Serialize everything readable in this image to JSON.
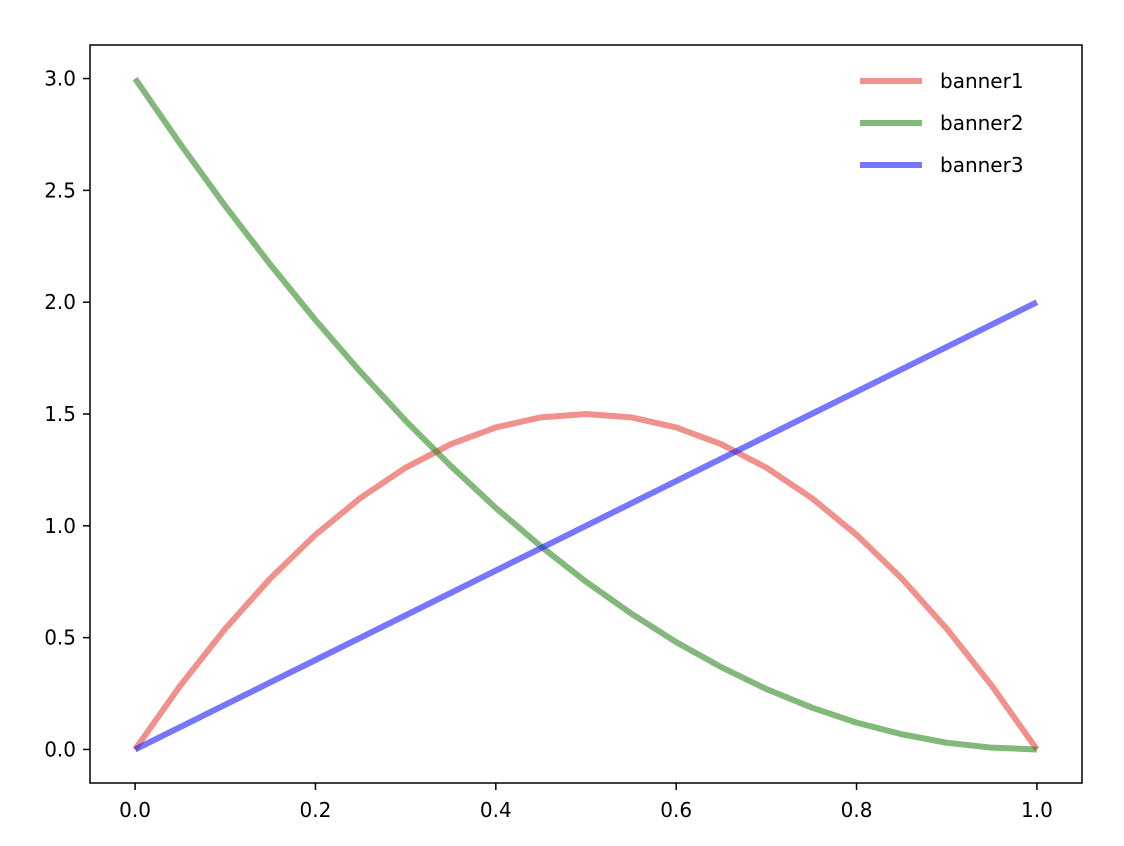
{
  "chart_data": {
    "type": "line",
    "title": "",
    "xlabel": "",
    "ylabel": "",
    "xlim": [
      -0.05,
      1.05
    ],
    "ylim": [
      -0.15,
      3.15
    ],
    "x_ticks": [
      0.0,
      0.2,
      0.4,
      0.6,
      0.8,
      1.0
    ],
    "x_tick_labels": [
      "0.0",
      "0.2",
      "0.4",
      "0.6",
      "0.8",
      "1.0"
    ],
    "y_ticks": [
      0.0,
      0.5,
      1.0,
      1.5,
      2.0,
      2.5,
      3.0
    ],
    "y_tick_labels": [
      "0.0",
      "0.5",
      "1.0",
      "1.5",
      "2.0",
      "2.5",
      "3.0"
    ],
    "grid": false,
    "legend_position": "top-right",
    "legend_frame": false,
    "x": [
      0.0,
      0.05,
      0.1,
      0.15,
      0.2,
      0.25,
      0.3,
      0.35,
      0.4,
      0.45,
      0.5,
      0.55,
      0.6,
      0.65,
      0.7,
      0.75,
      0.8,
      0.85,
      0.9,
      0.95,
      1.0
    ],
    "series": [
      {
        "name": "banner1",
        "color": "#e8473f",
        "values": [
          0.0,
          0.285,
          0.54,
          0.765,
          0.96,
          1.125,
          1.26,
          1.365,
          1.44,
          1.485,
          1.5,
          1.485,
          1.44,
          1.365,
          1.26,
          1.125,
          0.96,
          0.765,
          0.54,
          0.285,
          0.0
        ]
      },
      {
        "name": "banner2",
        "color": "#2e8b22",
        "values": [
          3.0,
          2.708,
          2.43,
          2.168,
          1.92,
          1.688,
          1.47,
          1.268,
          1.08,
          0.908,
          0.75,
          0.608,
          0.48,
          0.368,
          0.27,
          0.188,
          0.12,
          0.068,
          0.03,
          0.008,
          0.0
        ]
      },
      {
        "name": "banner3",
        "color": "#1a1aff",
        "values": [
          0.0,
          0.1,
          0.2,
          0.3,
          0.4,
          0.5,
          0.6,
          0.7,
          0.8,
          0.9,
          1.0,
          1.1,
          1.2,
          1.3,
          1.4,
          1.5,
          1.6,
          1.7,
          1.8,
          1.9,
          2.0
        ]
      }
    ]
  }
}
